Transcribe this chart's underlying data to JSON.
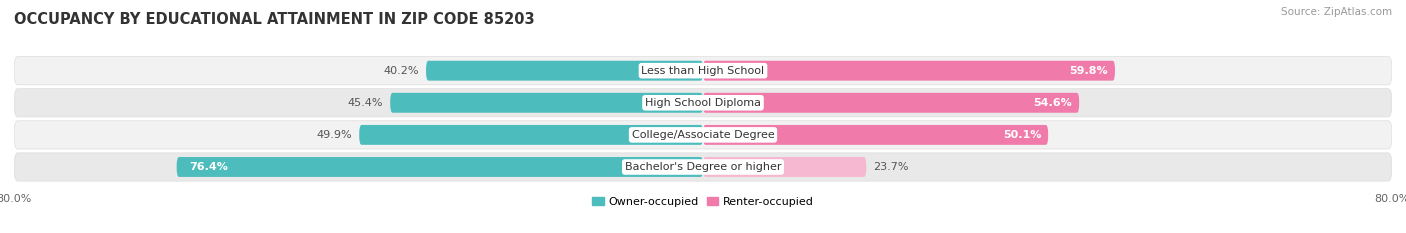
{
  "title": "OCCUPANCY BY EDUCATIONAL ATTAINMENT IN ZIP CODE 85203",
  "source": "Source: ZipAtlas.com",
  "categories": [
    "Less than High School",
    "High School Diploma",
    "College/Associate Degree",
    "Bachelor's Degree or higher"
  ],
  "owner_values": [
    40.2,
    45.4,
    49.9,
    76.4
  ],
  "renter_values": [
    59.8,
    54.6,
    50.1,
    23.7
  ],
  "owner_color": "#4cbcbc",
  "renter_color": "#f07aaa",
  "renter_color_light": "#f5b8d0",
  "bg_color_even": "#f0f0f0",
  "bg_color_odd": "#e8e8e8",
  "axis_label_left": "80.0%",
  "axis_label_right": "80.0%",
  "legend_owner": "Owner-occupied",
  "legend_renter": "Renter-occupied",
  "title_fontsize": 10.5,
  "source_fontsize": 7.5,
  "label_fontsize": 8,
  "bar_label_fontsize": 8,
  "category_fontsize": 8,
  "total_scale": 80.0,
  "owner_label_inside": [
    false,
    false,
    false,
    true
  ],
  "renter_label_inside": [
    true,
    true,
    true,
    false
  ]
}
